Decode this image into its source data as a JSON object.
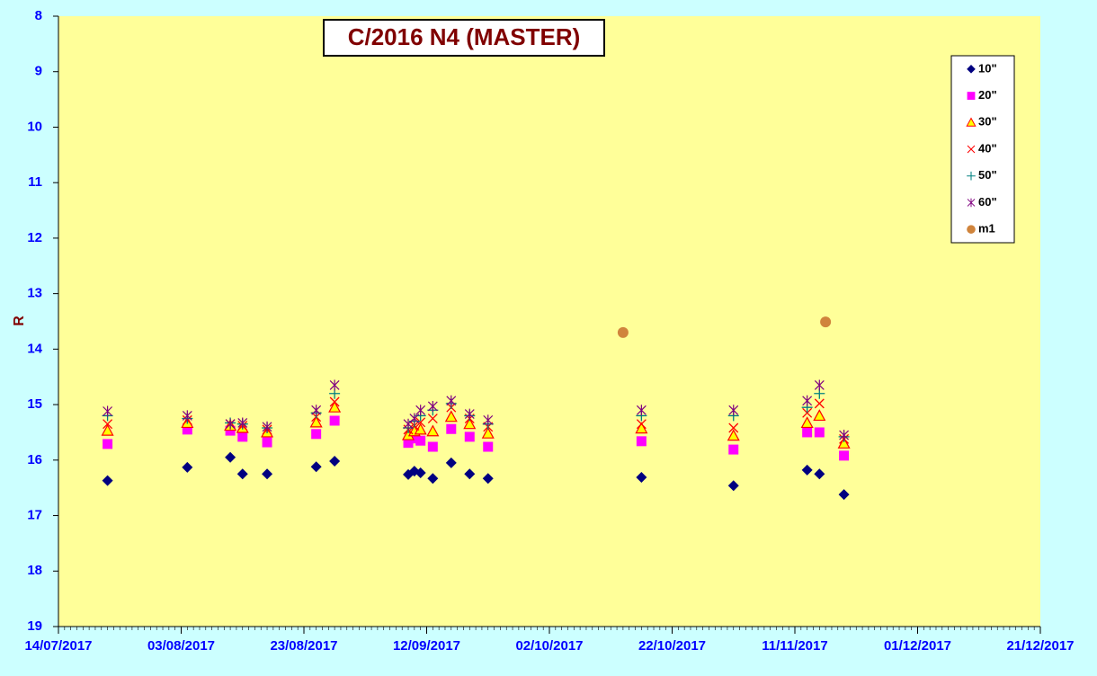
{
  "chart_data": {
    "type": "scatter",
    "title": "C/2016 N4 (MASTER)",
    "y_label": "R",
    "xlim": [
      "14/07/2017",
      "21/12/2017"
    ],
    "xticks": [
      "14/07/2017",
      "03/08/2017",
      "23/08/2017",
      "12/09/2017",
      "02/10/2017",
      "22/10/2017",
      "11/11/2017",
      "01/12/2017",
      "21/12/2017"
    ],
    "ylim": [
      8,
      19
    ],
    "yticks": [
      8,
      9,
      10,
      11,
      12,
      13,
      14,
      15,
      16,
      17,
      18,
      19
    ],
    "y_inverted": true,
    "legend": "top-right",
    "series": [
      {
        "name": "10\"",
        "color": "#000080",
        "marker": "diamond",
        "x": [
          "22/07/2017",
          "04/08/2017",
          "11/08/2017",
          "13/08/2017",
          "17/08/2017",
          "25/08/2017",
          "28/08/2017",
          "09/09/2017",
          "10/09/2017",
          "11/09/2017",
          "13/09/2017",
          "16/09/2017",
          "19/09/2017",
          "22/09/2017",
          "17/10/2017",
          "01/11/2017",
          "13/11/2017",
          "15/11/2017",
          "19/11/2017"
        ],
        "values": [
          16.37,
          16.13,
          15.95,
          16.25,
          16.25,
          16.12,
          16.02,
          16.26,
          16.2,
          16.23,
          16.33,
          16.05,
          16.25,
          16.33,
          16.31,
          16.46,
          16.18,
          16.25,
          16.62
        ]
      },
      {
        "name": "20\"",
        "color": "#ff00ff",
        "marker": "square",
        "x": [
          "22/07/2017",
          "04/08/2017",
          "11/08/2017",
          "13/08/2017",
          "17/08/2017",
          "25/08/2017",
          "28/08/2017",
          "09/09/2017",
          "10/09/2017",
          "11/09/2017",
          "13/09/2017",
          "16/09/2017",
          "19/09/2017",
          "22/09/2017",
          "17/10/2017",
          "01/11/2017",
          "13/11/2017",
          "15/11/2017",
          "19/11/2017"
        ],
        "values": [
          15.71,
          15.45,
          15.47,
          15.58,
          15.68,
          15.53,
          15.29,
          15.69,
          15.61,
          15.65,
          15.76,
          15.44,
          15.58,
          15.76,
          15.66,
          15.81,
          15.5,
          15.5,
          15.92
        ]
      },
      {
        "name": "30\"",
        "color": "#ff0000",
        "marker": "triangle",
        "x": [
          "22/07/2017",
          "04/08/2017",
          "11/08/2017",
          "13/08/2017",
          "17/08/2017",
          "25/08/2017",
          "28/08/2017",
          "09/09/2017",
          "10/09/2017",
          "11/09/2017",
          "13/09/2017",
          "16/09/2017",
          "19/09/2017",
          "22/09/2017",
          "17/10/2017",
          "01/11/2017",
          "13/11/2017",
          "15/11/2017",
          "19/11/2017"
        ],
        "values": [
          15.47,
          15.33,
          15.38,
          15.42,
          15.5,
          15.32,
          15.05,
          15.55,
          15.48,
          15.45,
          15.48,
          15.22,
          15.35,
          15.52,
          15.43,
          15.56,
          15.33,
          15.2,
          15.7
        ]
      },
      {
        "name": "40\"",
        "color": "#ff0000",
        "marker": "cross",
        "x": [
          "22/07/2017",
          "04/08/2017",
          "11/08/2017",
          "13/08/2017",
          "17/08/2017",
          "25/08/2017",
          "28/08/2017",
          "09/09/2017",
          "10/09/2017",
          "11/09/2017",
          "13/09/2017",
          "16/09/2017",
          "19/09/2017",
          "22/09/2017",
          "17/10/2017",
          "01/11/2017",
          "13/11/2017",
          "15/11/2017",
          "19/11/2017"
        ],
        "values": [
          15.35,
          15.28,
          15.35,
          15.38,
          15.45,
          15.22,
          14.95,
          15.45,
          15.38,
          15.32,
          15.25,
          15.05,
          15.25,
          15.4,
          15.35,
          15.42,
          15.15,
          14.98,
          15.62
        ]
      },
      {
        "name": "50\"",
        "color": "#008080",
        "marker": "plus",
        "x": [
          "22/07/2017",
          "04/08/2017",
          "11/08/2017",
          "13/08/2017",
          "17/08/2017",
          "25/08/2017",
          "28/08/2017",
          "09/09/2017",
          "10/09/2017",
          "11/09/2017",
          "13/09/2017",
          "16/09/2017",
          "19/09/2017",
          "22/09/2017",
          "17/10/2017",
          "01/11/2017",
          "13/11/2017",
          "15/11/2017",
          "19/11/2017"
        ],
        "values": [
          15.2,
          15.25,
          15.33,
          15.35,
          15.42,
          15.15,
          14.8,
          15.42,
          15.3,
          15.2,
          15.1,
          14.98,
          15.2,
          15.35,
          15.2,
          15.2,
          15.05,
          14.8,
          15.58
        ]
      },
      {
        "name": "60\"",
        "color": "#800080",
        "marker": "star",
        "x": [
          "22/07/2017",
          "04/08/2017",
          "11/08/2017",
          "13/08/2017",
          "17/08/2017",
          "25/08/2017",
          "28/08/2017",
          "09/09/2017",
          "10/09/2017",
          "11/09/2017",
          "13/09/2017",
          "16/09/2017",
          "19/09/2017",
          "22/09/2017",
          "17/10/2017",
          "01/11/2017",
          "13/11/2017",
          "15/11/2017",
          "19/11/2017"
        ],
        "values": [
          15.12,
          15.2,
          15.35,
          15.33,
          15.4,
          15.1,
          14.65,
          15.35,
          15.25,
          15.1,
          15.03,
          14.93,
          15.17,
          15.28,
          15.1,
          15.1,
          14.93,
          14.65,
          15.55
        ]
      },
      {
        "name": "m1",
        "color": "#d0843c",
        "marker": "circle",
        "x": [
          "14/10/2017",
          "16/11/2017"
        ],
        "values": [
          13.7,
          13.51
        ]
      }
    ]
  }
}
